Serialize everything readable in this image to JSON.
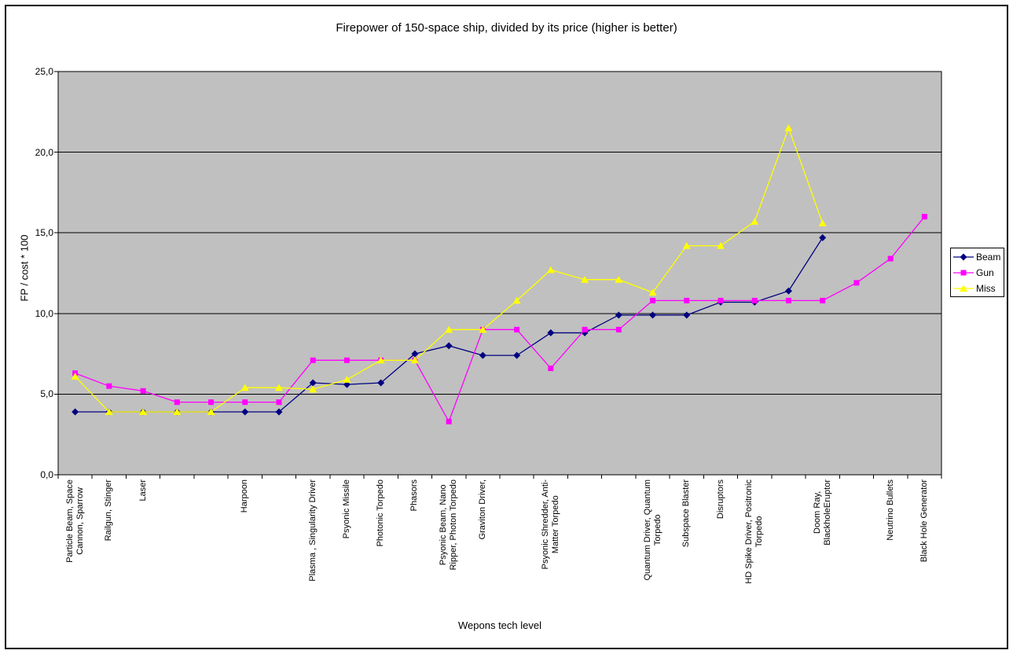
{
  "chart_data": {
    "type": "line",
    "title": "Firepower of 150-space ship, divided by its price (higher is better)",
    "xlabel": "Wepons tech level",
    "ylabel": "FP / cost * 100",
    "ylim": [
      0,
      25
    ],
    "ytick_interval": 5,
    "ytick_labels": [
      "0,0",
      "5,0",
      "10,0",
      "15,0",
      "20,0",
      "25,0"
    ],
    "grid": true,
    "plot_bg_color": "#C0C0C0",
    "legend_position": "right",
    "legend_entries": [
      "Beam",
      "Gun",
      "Miss"
    ],
    "categories": [
      "Particle Beam, Space\nCannon, Sparrow",
      "Railgun, Stinger",
      "Laser",
      "",
      "",
      "Harpoon",
      "",
      "Plasma , Singularity Driver",
      "Psyonic Missile",
      "Photonic Torpedo",
      "Phasors",
      "Psyonic Beam, Nano\nRipper, Photon Torpedo",
      "Graviton Driver,",
      "",
      "Psyonic Shredder, Anti-\nMatter Torpedo",
      "",
      "",
      "Quantum Driver, Quantum\nTorpedo",
      "Subspace Blaster",
      "Disruptors",
      "HD Spike Driver, Positronic\nTorpedo",
      "",
      "Doom Ray,\nBlackholeEruptor",
      "",
      "Neutrino Bullets",
      "Black Hole Generator"
    ],
    "series": [
      {
        "name": "Beam",
        "color": "#000080",
        "marker": "diamond",
        "values": [
          3.9,
          3.9,
          3.9,
          3.9,
          3.9,
          3.9,
          3.9,
          5.7,
          5.6,
          5.7,
          7.5,
          8.0,
          7.4,
          7.4,
          8.8,
          8.8,
          9.9,
          9.9,
          9.9,
          10.7,
          10.7,
          11.4,
          14.7,
          null,
          null,
          null
        ]
      },
      {
        "name": "Gun",
        "color": "#FF00FF",
        "marker": "square",
        "values": [
          6.3,
          5.5,
          5.2,
          4.5,
          4.5,
          4.5,
          4.5,
          7.1,
          7.1,
          7.1,
          7.1,
          3.3,
          9.0,
          9.0,
          6.6,
          9.0,
          9.0,
          10.8,
          10.8,
          10.8,
          10.8,
          10.8,
          10.8,
          11.9,
          13.4,
          16.0
        ]
      },
      {
        "name": "Miss",
        "color": "#FFFF00",
        "marker": "triangle",
        "values": [
          6.1,
          3.9,
          3.9,
          3.9,
          3.9,
          5.4,
          5.4,
          5.3,
          5.9,
          7.1,
          7.1,
          9.0,
          9.0,
          10.8,
          12.7,
          12.1,
          12.1,
          11.3,
          14.2,
          14.2,
          15.7,
          21.5,
          15.6,
          null,
          null,
          null
        ]
      }
    ]
  }
}
